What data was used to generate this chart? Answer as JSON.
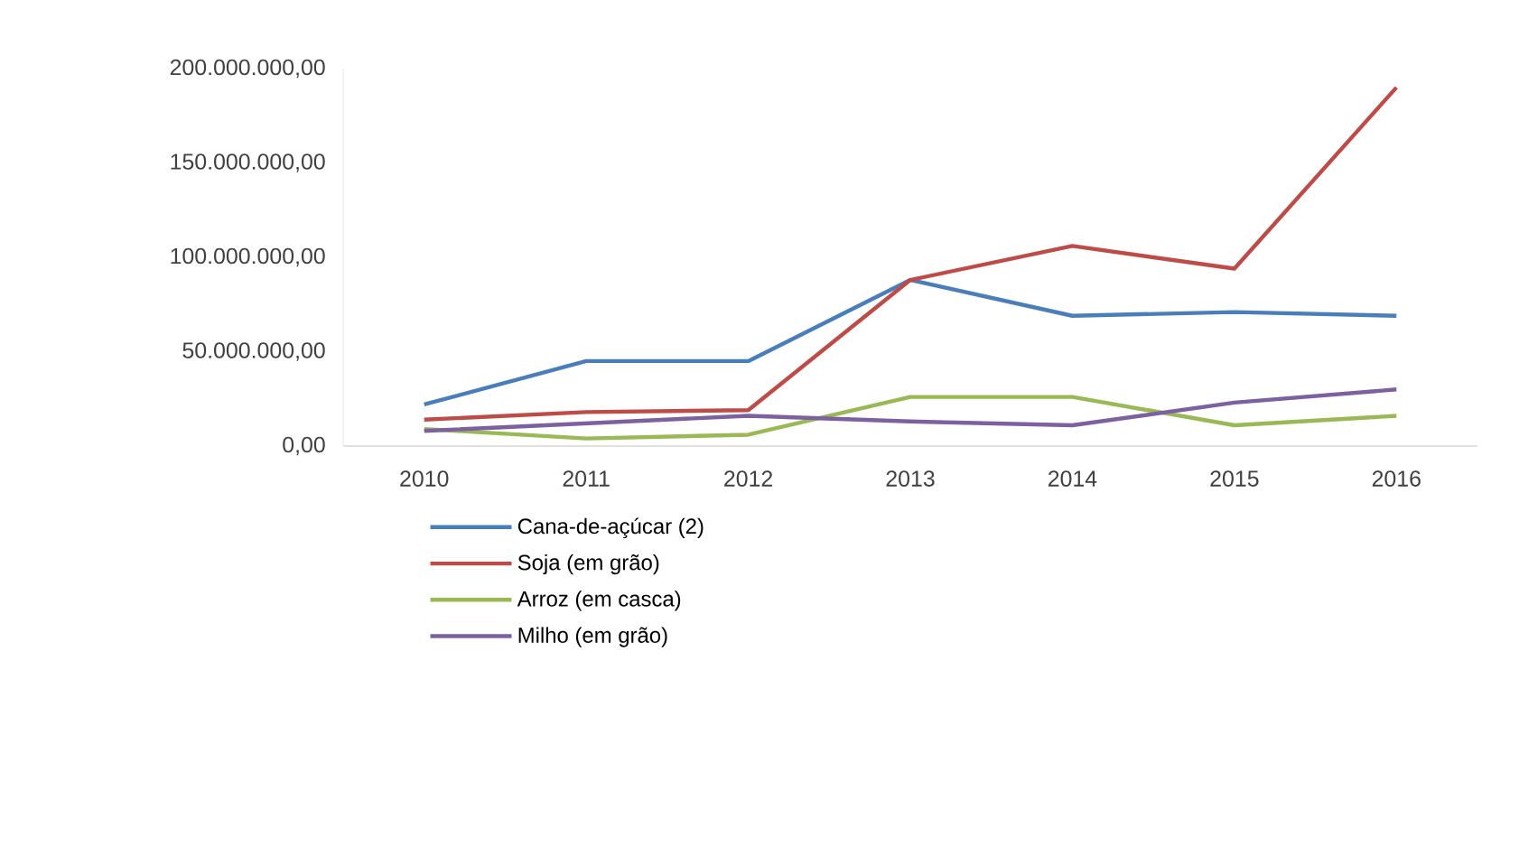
{
  "chart_data": {
    "type": "line",
    "categories": [
      "2010",
      "2011",
      "2012",
      "2013",
      "2014",
      "2015",
      "2016"
    ],
    "series": [
      {
        "name": "Cana-de-açúcar (2)",
        "color": "#4a7ebb",
        "values": [
          22000000,
          45000000,
          45000000,
          88000000,
          69000000,
          71000000,
          69000000
        ]
      },
      {
        "name": "Soja  (em grão)",
        "color": "#be4b48",
        "values": [
          14000000,
          18000000,
          19000000,
          88000000,
          106000000,
          94000000,
          190000000
        ]
      },
      {
        "name": "Arroz  (em casca)",
        "color": "#98b954",
        "values": [
          9000000,
          4000000,
          6000000,
          26000000,
          26000000,
          11000000,
          16000000
        ]
      },
      {
        "name": "Milho  (em grão)",
        "color": "#7d60a0",
        "values": [
          8000000,
          12000000,
          16000000,
          13000000,
          11000000,
          23000000,
          30000000
        ]
      }
    ],
    "ylim": [
      0,
      200000000
    ],
    "yticks": [
      {
        "value": 0,
        "label": "0,00"
      },
      {
        "value": 50000000,
        "label": "50.000.000,00"
      },
      {
        "value": 100000000,
        "label": "100.000.000,00"
      },
      {
        "value": 150000000,
        "label": "150.000.000,00"
      },
      {
        "value": 200000000,
        "label": "200.000.000,00"
      }
    ],
    "legend": "bottom"
  }
}
